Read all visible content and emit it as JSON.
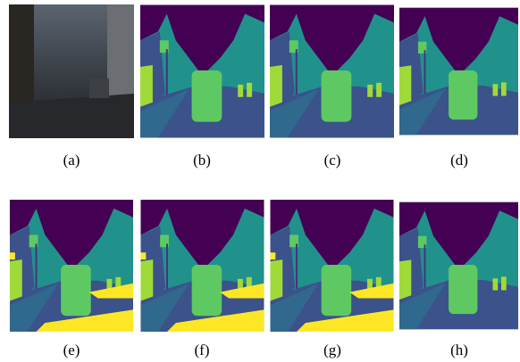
{
  "panels": [
    {
      "label": "(a)"
    },
    {
      "label": "(b)"
    },
    {
      "label": "(c)"
    },
    {
      "label": "(d)"
    },
    {
      "label": "(e)"
    },
    {
      "label": "(f)"
    },
    {
      "label": "(g)"
    },
    {
      "label": "(h)"
    }
  ]
}
